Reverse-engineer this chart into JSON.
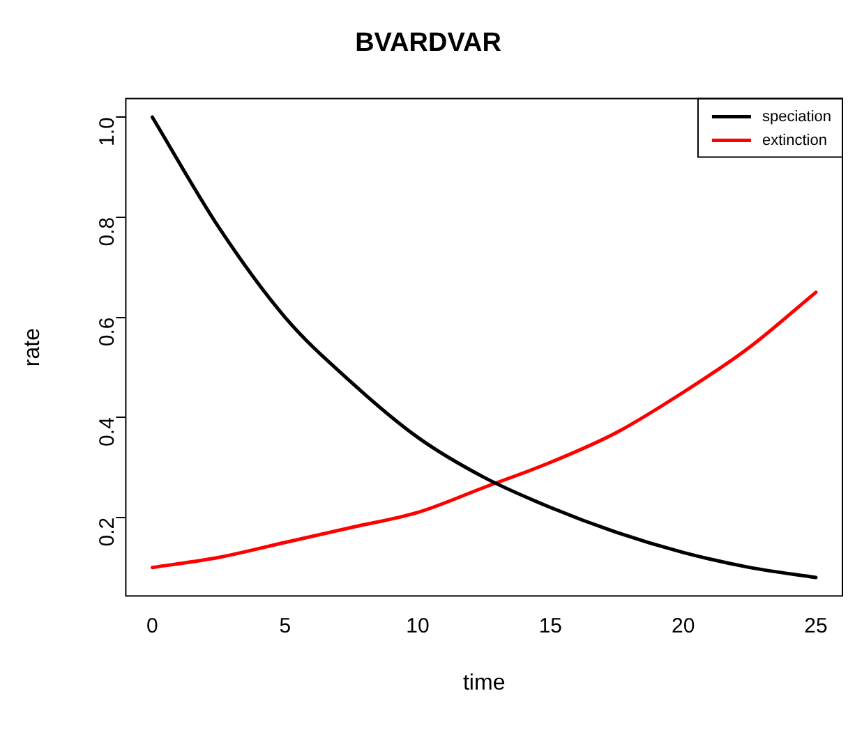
{
  "chart_data": {
    "type": "line",
    "title": "BVARDVAR",
    "xlabel": "time",
    "ylabel": "rate",
    "x": [
      0,
      2.5,
      5,
      7.5,
      10,
      12.5,
      15,
      17.5,
      20,
      22.5,
      25
    ],
    "series": [
      {
        "name": "speciation",
        "color": "#000000",
        "values": [
          1.0,
          0.78,
          0.6,
          0.47,
          0.36,
          0.28,
          0.22,
          0.17,
          0.13,
          0.1,
          0.08
        ]
      },
      {
        "name": "extinction",
        "color": "#ff0000",
        "values": [
          0.1,
          0.12,
          0.15,
          0.18,
          0.21,
          0.26,
          0.31,
          0.37,
          0.45,
          0.54,
          0.65
        ]
      }
    ],
    "xlim": [
      -1,
      26
    ],
    "ylim": [
      0.043,
      1.037
    ],
    "xticks": [
      0,
      5,
      10,
      15,
      20,
      25
    ],
    "yticks": [
      0.2,
      0.4,
      0.6,
      0.8,
      {
        "value": 1,
        "label": "1.0"
      }
    ],
    "grid": false,
    "legend": "top right",
    "marker": "none",
    "line_style": "solid"
  }
}
